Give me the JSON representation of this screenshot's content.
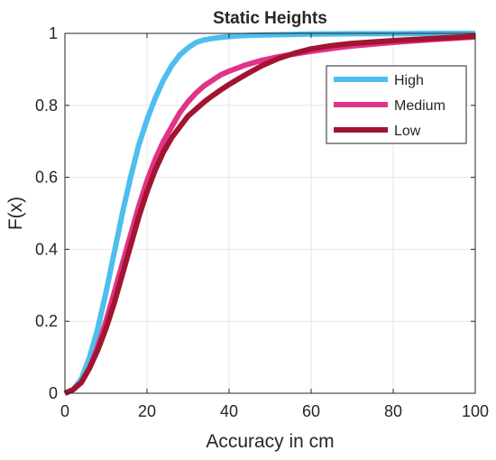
{
  "chart_data": {
    "type": "line",
    "title": "Static Heights",
    "xlabel": "Accuracy in cm",
    "ylabel": "F(x)",
    "xlim": [
      0,
      100
    ],
    "ylim": [
      0,
      1
    ],
    "xticks": [
      0,
      20,
      40,
      60,
      80,
      100
    ],
    "yticks": [
      0,
      0.2,
      0.4,
      0.6,
      0.8,
      1
    ],
    "xtick_labels": [
      "0",
      "20",
      "40",
      "60",
      "80",
      "100"
    ],
    "ytick_labels": [
      "0",
      "0.2",
      "0.4",
      "0.6",
      "0.8",
      "1"
    ],
    "grid": true,
    "legend_position": "top-right",
    "series": [
      {
        "name": "High",
        "color": "#4DBEEE",
        "x": [
          0,
          2,
          4,
          6,
          8,
          10,
          12,
          14,
          16,
          18,
          20,
          22,
          24,
          26,
          28,
          30,
          32,
          34,
          36,
          38,
          40,
          42,
          44,
          46,
          50,
          55,
          60,
          70,
          80,
          90,
          100
        ],
        "y": [
          0,
          0.01,
          0.04,
          0.1,
          0.18,
          0.28,
          0.39,
          0.5,
          0.6,
          0.69,
          0.76,
          0.82,
          0.87,
          0.91,
          0.94,
          0.96,
          0.975,
          0.982,
          0.986,
          0.989,
          0.991,
          0.993,
          0.994,
          0.995,
          0.996,
          0.997,
          0.998,
          0.999,
          0.999,
          1.0,
          1.0
        ]
      },
      {
        "name": "Medium",
        "color": "#E0338A",
        "x": [
          0,
          2,
          4,
          6,
          8,
          10,
          12,
          14,
          16,
          18,
          20,
          22,
          24,
          26,
          28,
          30,
          32,
          34,
          36,
          38,
          40,
          44,
          48,
          52,
          56,
          60,
          65,
          70,
          80,
          90,
          100
        ],
        "y": [
          0,
          0.01,
          0.03,
          0.07,
          0.13,
          0.2,
          0.28,
          0.36,
          0.44,
          0.52,
          0.59,
          0.65,
          0.7,
          0.74,
          0.78,
          0.81,
          0.835,
          0.855,
          0.87,
          0.885,
          0.895,
          0.912,
          0.925,
          0.935,
          0.943,
          0.95,
          0.958,
          0.965,
          0.975,
          0.983,
          0.99
        ]
      },
      {
        "name": "Low",
        "color": "#A2142F",
        "x": [
          0,
          2,
          4,
          6,
          8,
          10,
          12,
          14,
          16,
          18,
          20,
          22,
          24,
          26,
          28,
          30,
          32,
          34,
          36,
          38,
          40,
          44,
          48,
          52,
          56,
          60,
          65,
          70,
          80,
          90,
          100
        ],
        "y": [
          0,
          0.01,
          0.03,
          0.07,
          0.12,
          0.18,
          0.25,
          0.33,
          0.41,
          0.49,
          0.56,
          0.62,
          0.67,
          0.71,
          0.74,
          0.77,
          0.79,
          0.81,
          0.827,
          0.843,
          0.858,
          0.885,
          0.91,
          0.93,
          0.945,
          0.957,
          0.966,
          0.972,
          0.98,
          0.986,
          0.992
        ]
      }
    ]
  }
}
